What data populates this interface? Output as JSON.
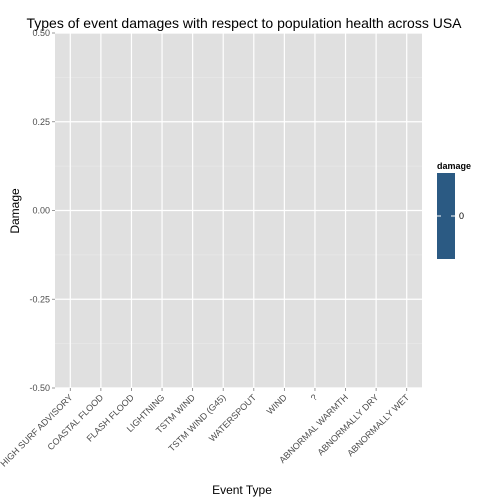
{
  "chart_data": {
    "type": "bar",
    "title": "Types of event damages with respect to population health across USA",
    "xlabel": "Event Type",
    "ylabel": "Damage",
    "categories": [
      "HIGH SURF ADVISORY",
      "COASTAL FLOOD",
      "FLASH FLOOD",
      "LIGHTNING",
      "TSTM WIND",
      "TSTM WIND (G45)",
      "WATERSPOUT",
      "WIND",
      "?",
      "ABNORMAL WARMTH",
      "ABNORMALLY DRY",
      "ABNORMALLY WET"
    ],
    "values": [
      0,
      0,
      0,
      0,
      0,
      0,
      0,
      0,
      0,
      0,
      0,
      0
    ],
    "ylim": [
      -0.5,
      0.5
    ],
    "yticks": [
      "0.50",
      "0.25",
      "0.00",
      "-0.25",
      "-0.50"
    ],
    "yticks_values": [
      0.5,
      0.25,
      0,
      -0.25,
      -0.5
    ],
    "grid": true,
    "legend": {
      "title": "damage",
      "placement": "right",
      "entries": [
        {
          "label": "0",
          "color": "#2b5a83"
        }
      ]
    },
    "colors": {
      "panel_background": "#e0e0e0",
      "grid_major": "#ffffff",
      "grid_minor": "#ededed",
      "bar_fill": "#2b5a83"
    }
  }
}
